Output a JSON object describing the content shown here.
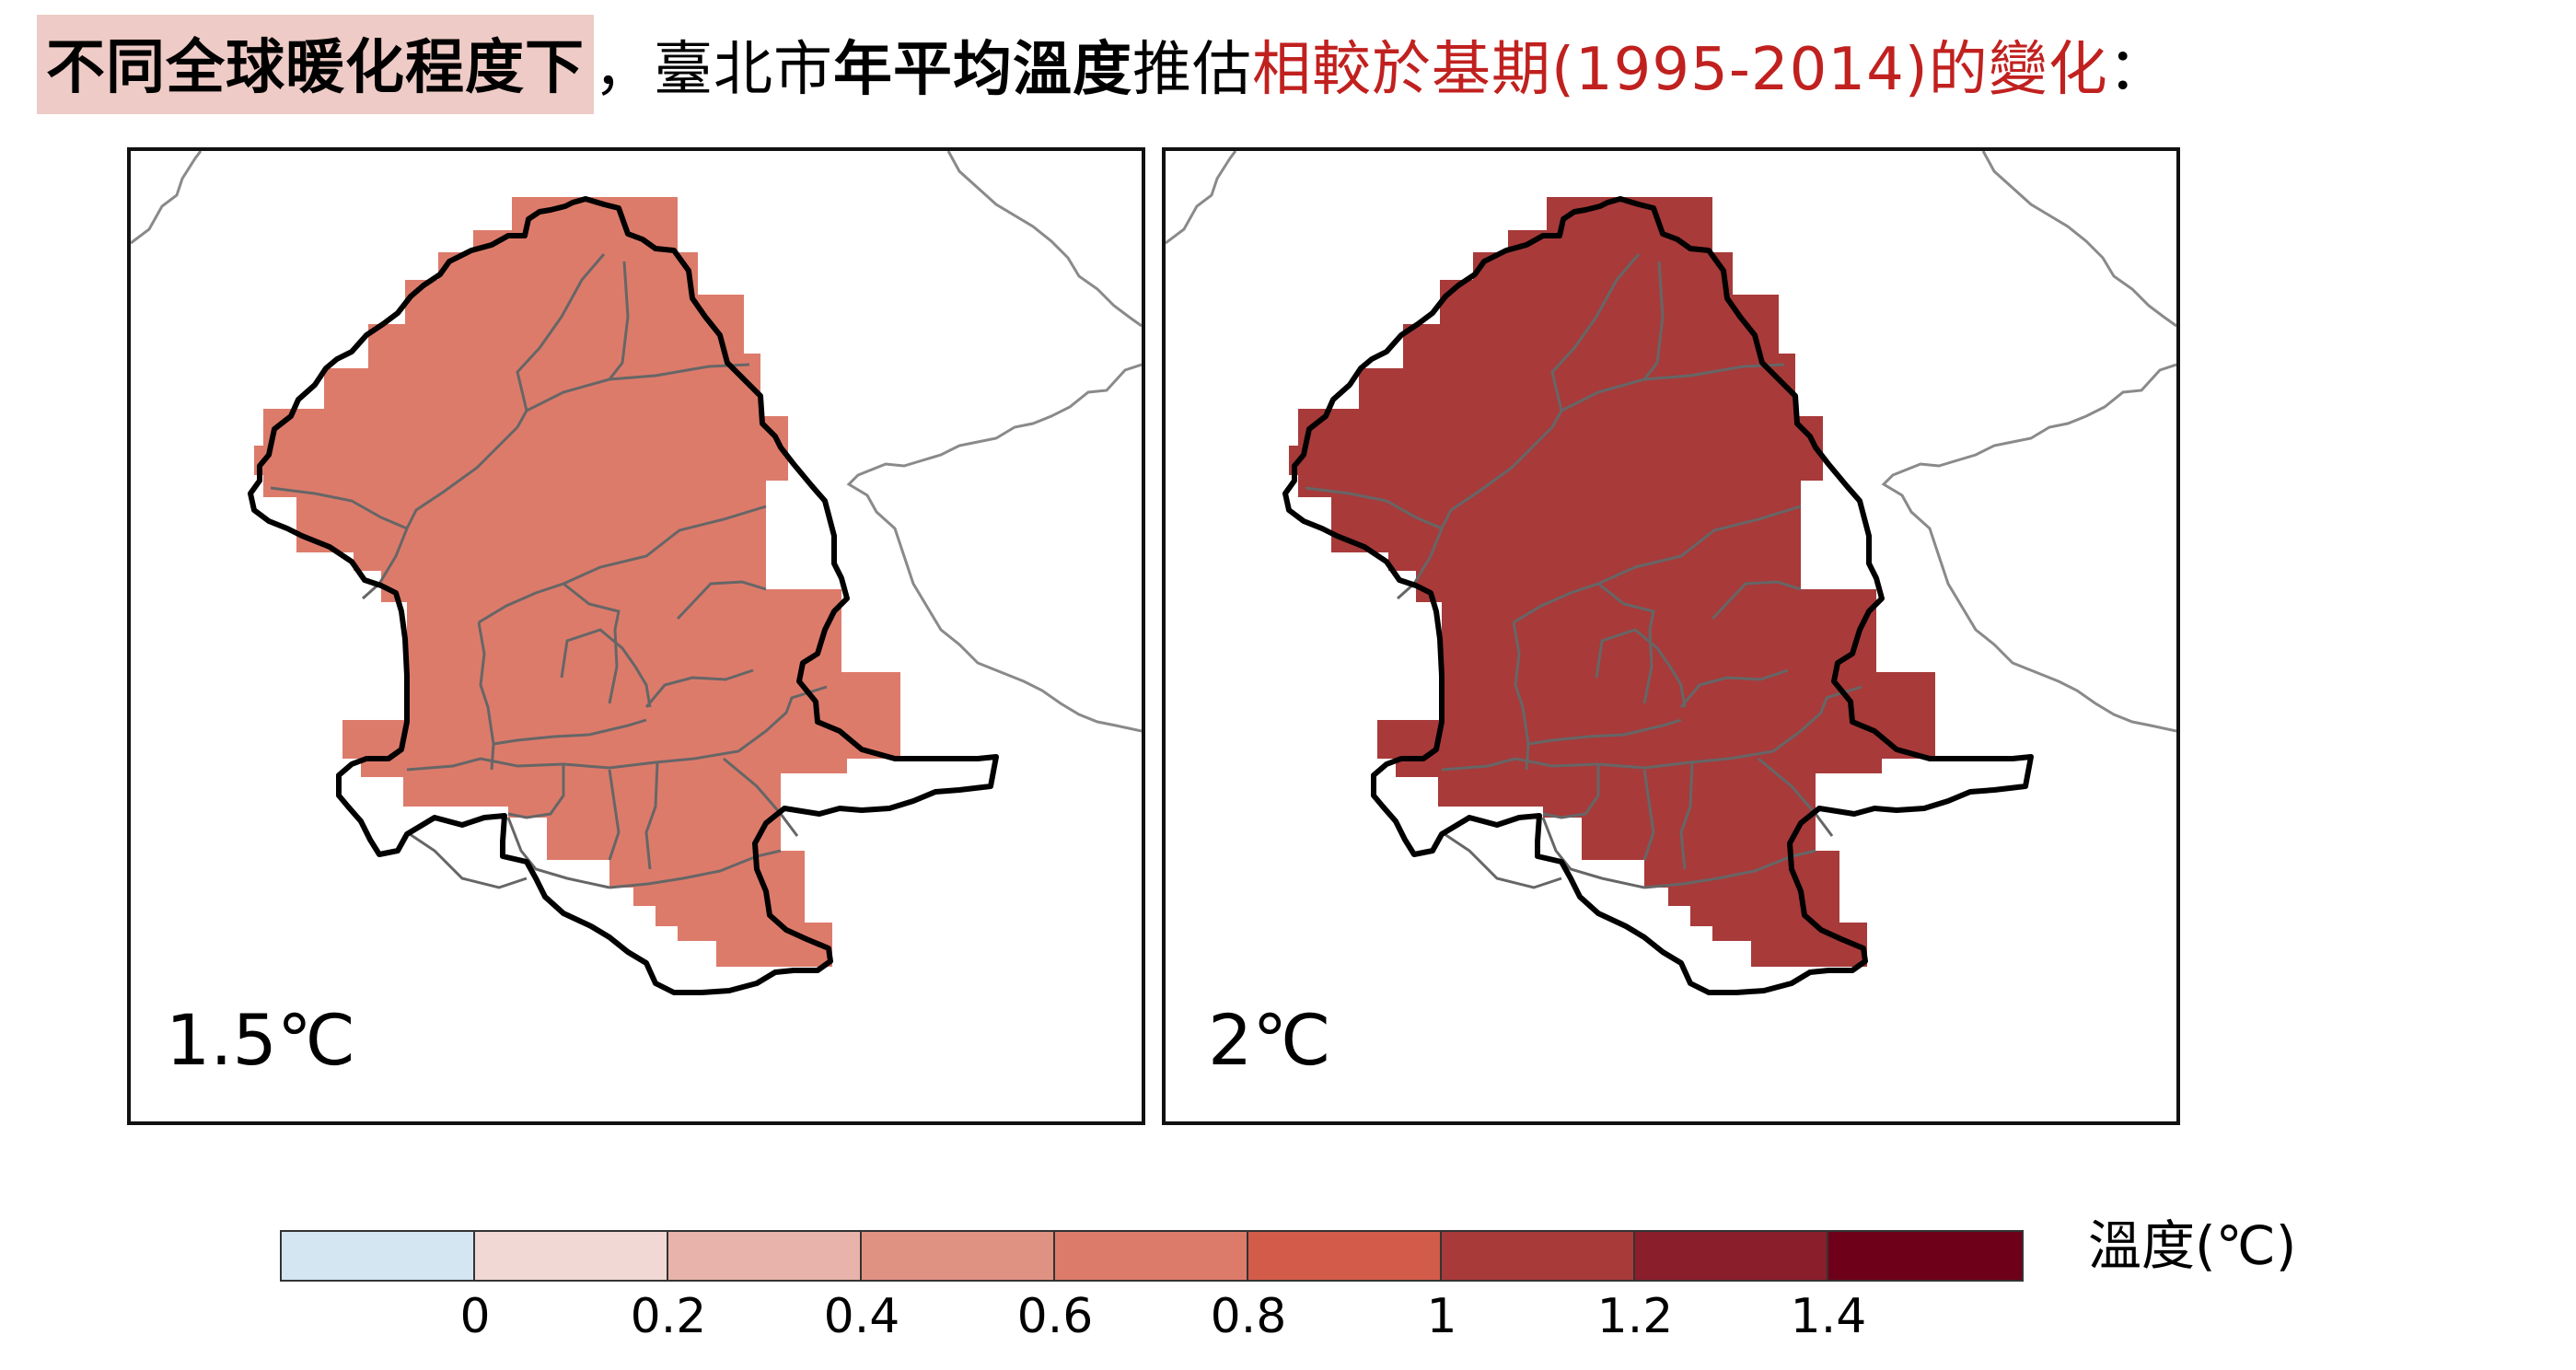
{
  "title": {
    "highlight": "不同全球暖化程度下",
    "part1": "，臺北市",
    "bold": "年平均溫度",
    "part2": "推估",
    "red": "相較於基期(1995-2014)的變化",
    "end": "："
  },
  "panels": [
    {
      "label": "1.5℃",
      "value": 0.7,
      "fill": "#dd7b6b"
    },
    {
      "label": "2℃",
      "value": 1.1,
      "fill": "#a83a3a"
    }
  ],
  "colorbar": {
    "unit_label": "溫度(℃)",
    "colors": [
      "#d3e6f2",
      "#f1d8d4",
      "#e8b3aa",
      "#e09282",
      "#dd7b6b",
      "#d25c49",
      "#a83a3a",
      "#8b1e2b",
      "#6e0019"
    ],
    "ticks": [
      "0",
      "0.2",
      "0.4",
      "0.6",
      "0.8",
      "1",
      "1.2",
      "1.4"
    ]
  },
  "colors": {
    "title_red": "#c0211f",
    "title_highlight": "#eecbc6",
    "district_line": "#666666",
    "coast_line": "#8a8a8a"
  }
}
